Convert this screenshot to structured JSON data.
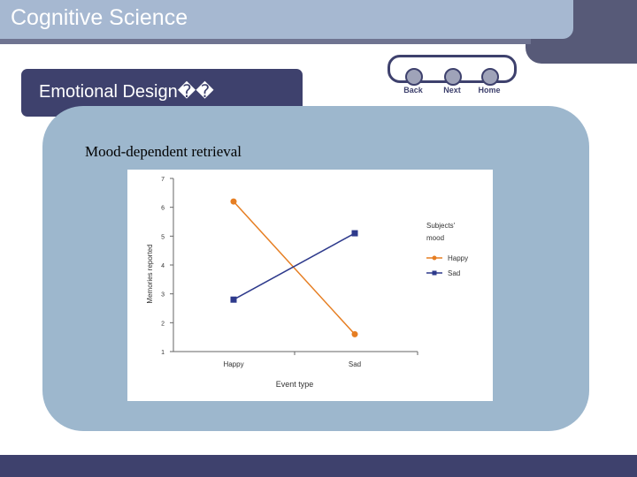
{
  "slide": {
    "title": "Cognitive Science",
    "subtitle": "Emotional Design��",
    "heading": "Mood-dependent retrieval"
  },
  "nav": {
    "back_label": "Back",
    "next_label": "Next",
    "home_label": "Home"
  },
  "colors": {
    "header_light": "#a6b8d1",
    "header_dark": "#3e416d",
    "panel": "#9db7cd",
    "happy_series": "#e67e22",
    "sad_series": "#2e3a8c"
  },
  "chart_data": {
    "type": "line",
    "categories": [
      "Happy",
      "Sad"
    ],
    "xlabel": "Event type",
    "ylabel": "Memories reported",
    "ylim": [
      1,
      7
    ],
    "yticks": [
      1,
      2,
      3,
      4,
      5,
      6,
      7
    ],
    "grid": false,
    "legend": {
      "title": "Subjects' mood",
      "placement": "right"
    },
    "series": [
      {
        "name": "Happy",
        "marker": "circle",
        "color": "#e67e22",
        "values": [
          6.2,
          1.6
        ]
      },
      {
        "name": "Sad",
        "marker": "square",
        "color": "#2e3a8c",
        "values": [
          2.8,
          5.1
        ]
      }
    ]
  }
}
